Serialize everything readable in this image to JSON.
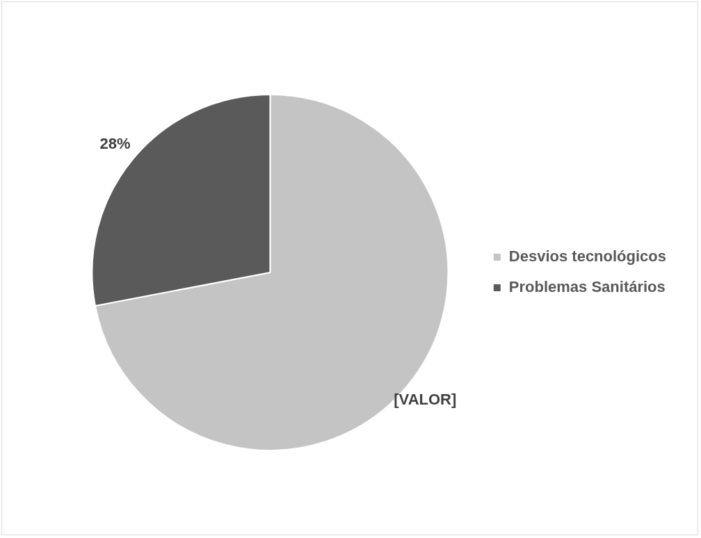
{
  "chart_data": {
    "type": "pie",
    "categories": [
      "Desvios tecnológicos",
      "Problemas Sanitários"
    ],
    "values": [
      72,
      28
    ],
    "colors": [
      "#c4c4c4",
      "#5a5a5a"
    ],
    "value_labels": [
      "[VALOR]",
      "28%"
    ],
    "legend": "right"
  }
}
